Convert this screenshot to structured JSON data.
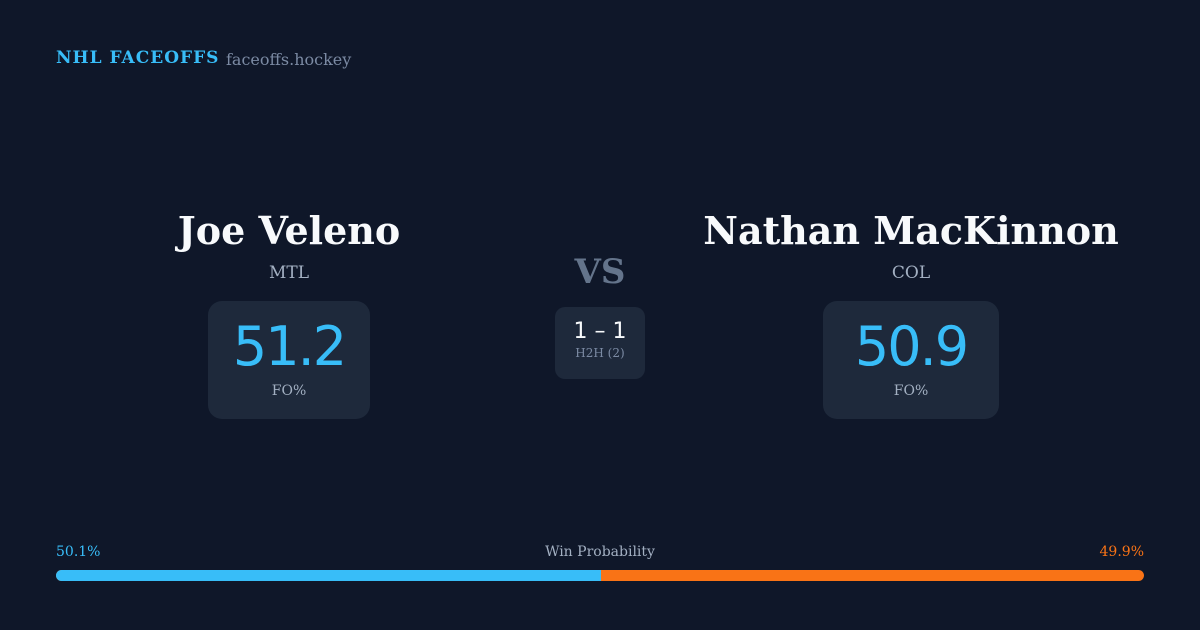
{
  "header": {
    "brand": "NHL FACEOFFS",
    "site": "faceoffs.hockey"
  },
  "left": {
    "name": "Joe Veleno",
    "team": "MTL",
    "fo_pct": "51.2",
    "fo_label": "FO%"
  },
  "right": {
    "name": "Nathan MacKinnon",
    "team": "COL",
    "fo_pct": "50.9",
    "fo_label": "FO%"
  },
  "vs": "VS",
  "h2h": {
    "score": "1 – 1",
    "label": "H2H (2)"
  },
  "win_probability": {
    "label": "Win Probability",
    "left": "50.1%",
    "right": "49.9%",
    "left_fraction": 0.501,
    "colors": {
      "left": "#38bdf8",
      "right": "#f97316"
    }
  }
}
